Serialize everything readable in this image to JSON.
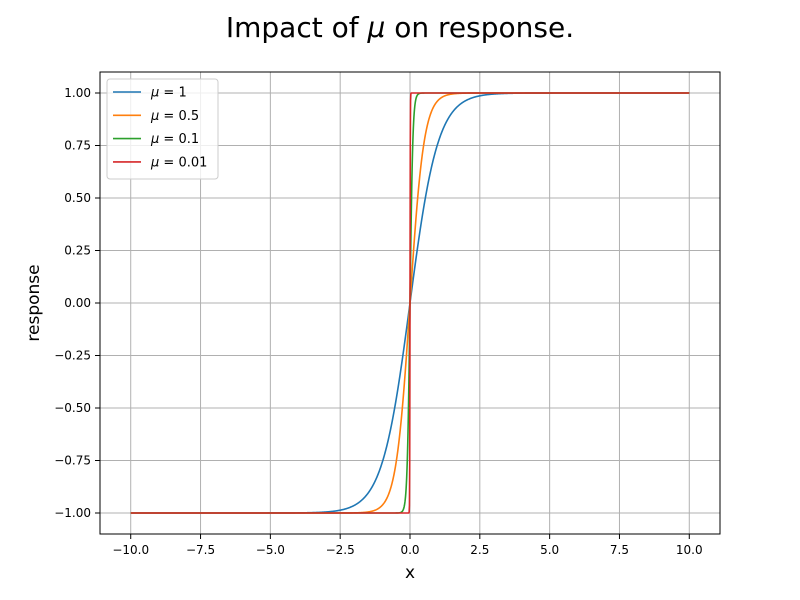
{
  "chart_data": {
    "type": "line",
    "title_prefix": "Impact of ",
    "title_symbol": "μ",
    "title_suffix": " on response.",
    "xlabel": "x",
    "ylabel": "response",
    "xlim": [
      -11.1,
      11.1
    ],
    "ylim": [
      -1.1,
      1.1
    ],
    "grid": true,
    "legend_position": "top-left",
    "x_ticks": [
      -10.0,
      -7.5,
      -5.0,
      -2.5,
      0.0,
      2.5,
      5.0,
      7.5,
      10.0
    ],
    "x_tick_labels": [
      "−10.0",
      "−7.5",
      "−5.0",
      "−2.5",
      "0.0",
      "2.5",
      "5.0",
      "7.5",
      "10.0"
    ],
    "y_ticks": [
      -1.0,
      -0.75,
      -0.5,
      -0.25,
      0.0,
      0.25,
      0.5,
      0.75,
      1.0
    ],
    "y_tick_labels": [
      "−1.00",
      "−0.75",
      "−0.50",
      "−0.25",
      "0.00",
      "0.25",
      "0.50",
      "0.75",
      "1.00"
    ],
    "x_domain": [
      -10,
      10
    ],
    "function": "tanh(x / mu)",
    "series": [
      {
        "name_symbol": "μ",
        "name_rest": " = 1",
        "mu": 1,
        "color": "#1f77b4"
      },
      {
        "name_symbol": "μ",
        "name_rest": " = 0.5",
        "mu": 0.5,
        "color": "#ff7f0e"
      },
      {
        "name_symbol": "μ",
        "name_rest": " = 0.1",
        "mu": 0.1,
        "color": "#2ca02c"
      },
      {
        "name_symbol": "μ",
        "name_rest": " = 0.01",
        "mu": 0.01,
        "color": "#d62728"
      }
    ]
  }
}
